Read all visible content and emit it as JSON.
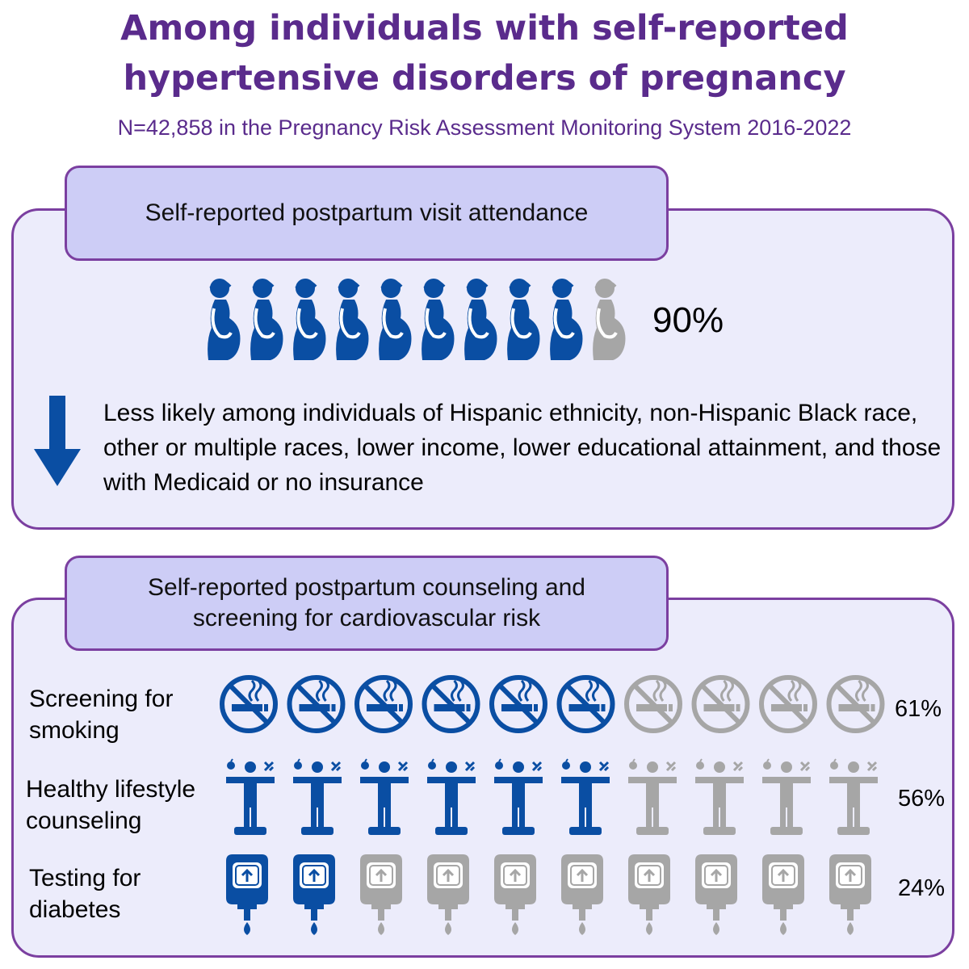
{
  "header": {
    "title_line1": "Among individuals with self-reported",
    "title_line2": "hypertensive disorders of pregnancy",
    "subtitle": "N=42,858 in the Pregnancy Risk Assessment Monitoring System 2016-2022"
  },
  "colors": {
    "purple": "#5a2b8c",
    "filled": "#0a4ea3",
    "empty": "#a6a6a6",
    "panel_bg": "#ececfb",
    "tab_bg": "#cdcdf6"
  },
  "attendance": {
    "heading": "Self-reported postpartum visit attendance",
    "percent_label": "90%",
    "fraction": 0.9,
    "icon": "pregnant-woman-icon",
    "description": "Less likely among individuals of Hispanic ethnicity, non-Hispanic Black race, other or multiple races, lower income, lower educational attainment, and those with Medicaid or no insurance",
    "arrow_icon": "down-arrow-icon"
  },
  "counseling": {
    "heading_line1": "Self-reported postpartum counseling and",
    "heading_line2": "screening for cardiovascular risk",
    "rows": [
      {
        "label_line1": "Screening for",
        "label_line2": "smoking",
        "percent_label": "61%",
        "fraction": 0.61,
        "icon": "no-smoking-icon"
      },
      {
        "label_line1": "Healthy lifestyle",
        "label_line2": "counseling",
        "percent_label": "56%",
        "fraction": 0.56,
        "icon": "healthy-lifestyle-icon"
      },
      {
        "label_line1": "Testing for",
        "label_line2": "diabetes",
        "percent_label": "24%",
        "fraction": 0.24,
        "icon": "glucose-meter-icon"
      }
    ]
  }
}
